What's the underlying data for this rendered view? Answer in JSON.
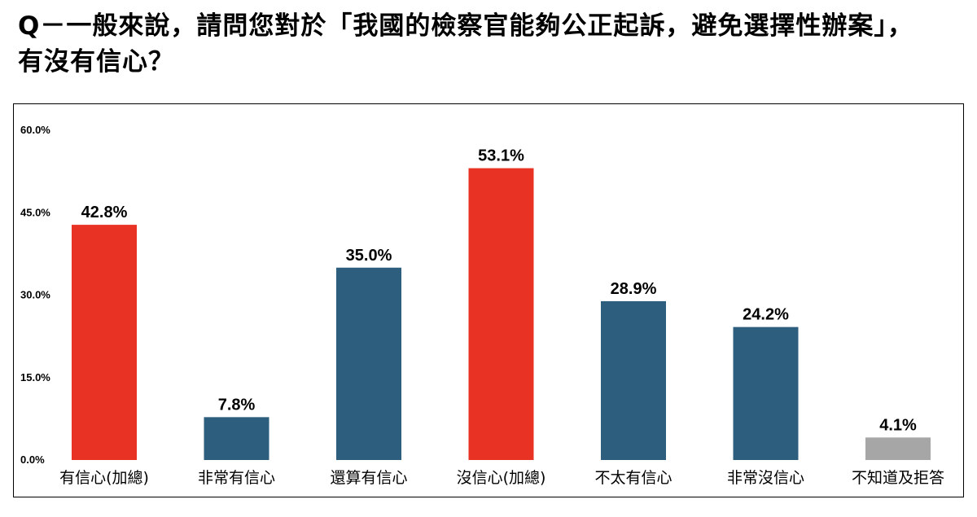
{
  "header": {
    "title": "Q－一般來說，請問您對於「我國的檢察官能夠公正起訴，避免選擇性辦案」，有沒有信心？"
  },
  "colors": {
    "red": "#E83324",
    "blue": "#2E5E7E",
    "gray": "#A6A6A6"
  },
  "chart_data": {
    "type": "bar",
    "categories": [
      "有信心(加總)",
      "非常有信心",
      "還算有信心",
      "沒信心(加總)",
      "不太有信心",
      "非常沒信心",
      "不知道及拒答"
    ],
    "values": [
      42.8,
      7.8,
      35.0,
      53.1,
      28.9,
      24.2,
      4.1
    ],
    "value_labels": [
      "42.8%",
      "7.8%",
      "35.0%",
      "53.1%",
      "28.9%",
      "24.2%",
      "4.1%"
    ],
    "bar_colors": [
      "red",
      "blue",
      "blue",
      "red",
      "blue",
      "blue",
      "gray"
    ],
    "y_ticks": [
      0,
      15,
      30,
      45,
      60
    ],
    "y_tick_labels": [
      "0.0%",
      "15.0%",
      "30.0%",
      "45.0%",
      "60.0%"
    ],
    "ylim": [
      0,
      60
    ],
    "grid": false,
    "legend": "none",
    "title": "",
    "xlabel": "",
    "ylabel": ""
  }
}
